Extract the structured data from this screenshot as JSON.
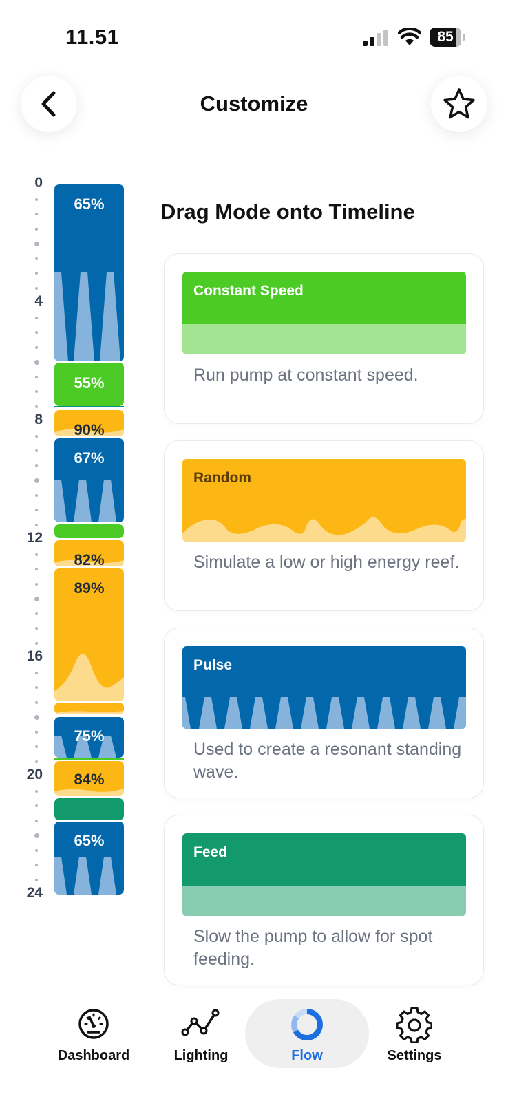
{
  "status_bar": {
    "time": "11.51",
    "battery": "85",
    "battery_level": 0.85
  },
  "header": {
    "title": "Customize",
    "back_icon": "chevron-left-icon",
    "favorite_icon": "star-icon"
  },
  "timeline": {
    "axis_labels": [
      "0",
      "4",
      "8",
      "12",
      "16",
      "20",
      "24"
    ],
    "segments": [
      {
        "mode": "Pulse",
        "label": "65%"
      },
      {
        "mode": "Constant Speed",
        "label": "55%"
      },
      {
        "mode": "Random",
        "label": "90%"
      },
      {
        "mode": "Pulse",
        "label": "67%"
      },
      {
        "mode": "Constant Speed",
        "label": ""
      },
      {
        "mode": "Random",
        "label": "82%"
      },
      {
        "mode": "Random",
        "label": "89%"
      },
      {
        "mode": "Random",
        "label": ""
      },
      {
        "mode": "Pulse",
        "label": "75%"
      },
      {
        "mode": "Random",
        "label": "84%"
      },
      {
        "mode": "Feed",
        "label": ""
      },
      {
        "mode": "Pulse",
        "label": "65%"
      }
    ]
  },
  "panel": {
    "heading": "Drag Mode onto Timeline",
    "modes": [
      {
        "name": "Constant Speed",
        "description": "Run pump at constant speed.",
        "color": "#4ccb26"
      },
      {
        "name": "Random",
        "description": "Simulate a low or high energy reef.",
        "color": "#fdb714"
      },
      {
        "name": "Pulse",
        "description": "Used to create a resonant standing wave.",
        "color": "#0367ab"
      },
      {
        "name": "Feed",
        "description": "Slow the pump to allow for spot feeding.",
        "color": "#12996c"
      }
    ]
  },
  "nav": {
    "items": [
      {
        "label": "Dashboard",
        "icon": "gauge-icon"
      },
      {
        "label": "Lighting",
        "icon": "line-chart-icon"
      },
      {
        "label": "Flow",
        "icon": "donut-icon"
      },
      {
        "label": "Settings",
        "icon": "gear-icon"
      }
    ],
    "active": "Flow",
    "active_color": "#1d6fe0"
  }
}
